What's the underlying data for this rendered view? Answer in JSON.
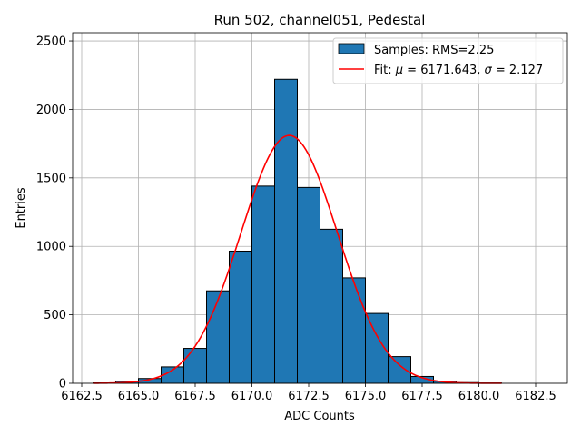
{
  "chart_data": {
    "type": "bar",
    "title": "Run 502, channel051, Pedestal",
    "xlabel": "ADC Counts",
    "ylabel": "Entries",
    "xlim": [
      6162.1,
      6183.9
    ],
    "ylim": [
      0,
      2560
    ],
    "grid": true,
    "legend_position": "top-right",
    "x_ticks": [
      6162.5,
      6165.0,
      6167.5,
      6170.0,
      6172.5,
      6175.0,
      6177.5,
      6180.0,
      6182.5
    ],
    "x_tick_labels": [
      "6162.5",
      "6165.0",
      "6167.5",
      "6170.0",
      "6172.5",
      "6175.0",
      "6177.5",
      "6180.0",
      "6182.5"
    ],
    "y_ticks": [
      0,
      500,
      1000,
      1500,
      2000,
      2500
    ],
    "y_tick_labels": [
      "0",
      "500",
      "1000",
      "1500",
      "2000",
      "2500"
    ],
    "histogram": {
      "name": "Samples: RMS=2.25",
      "color": "#1f77b4",
      "edge_color": "#000000",
      "bin_edges": [
        6163,
        6164,
        6165,
        6166,
        6167,
        6168,
        6169,
        6170,
        6171,
        6172,
        6173,
        6174,
        6175,
        6176,
        6177,
        6178,
        6179,
        6180,
        6181
      ],
      "counts": [
        3,
        15,
        35,
        120,
        255,
        675,
        965,
        1440,
        2220,
        1430,
        1125,
        770,
        510,
        195,
        50,
        15,
        5,
        2
      ]
    },
    "fit": {
      "name_prefix": "Fit: ",
      "name_mu": "μ",
      "name_mid": " = 6171.643, ",
      "name_sigma": "σ",
      "name_suffix": " = 2.127",
      "color": "#ff0000",
      "mu": 6171.643,
      "sigma": 2.127,
      "amplitude": 1810,
      "x_range": [
        6163,
        6181
      ]
    }
  }
}
